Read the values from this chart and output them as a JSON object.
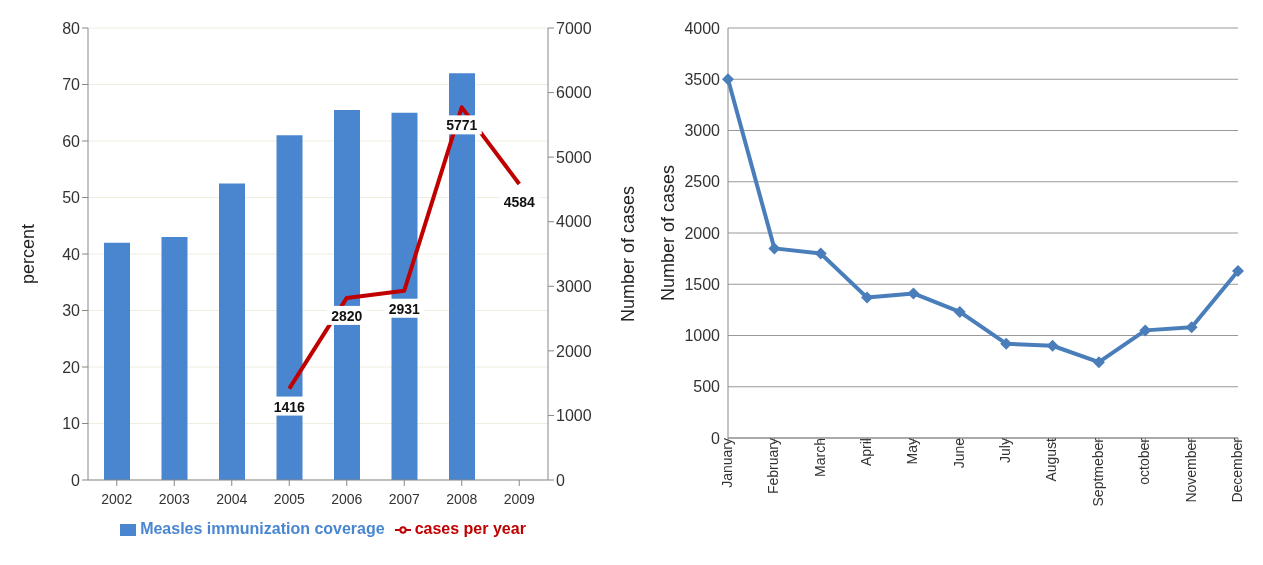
{
  "chart_data": [
    {
      "type": "bar",
      "categories": [
        "2002",
        "2003",
        "2004",
        "2005",
        "2006",
        "2007",
        "2008",
        "2009"
      ],
      "ylabel": "percent",
      "y2label": "Number of cases",
      "ylim": [
        0,
        80
      ],
      "yticks": [
        0,
        10,
        20,
        30,
        40,
        50,
        60,
        70,
        80
      ],
      "y2lim": [
        0,
        7000
      ],
      "y2ticks": [
        0,
        1000,
        2000,
        3000,
        4000,
        5000,
        6000,
        7000
      ],
      "grid": "y",
      "legend": "bottom",
      "marker": "none",
      "series": [
        {
          "name": "Measles immunization coverage",
          "type": "bar",
          "color": "#4a86d0",
          "values": [
            42,
            43,
            52.5,
            61,
            65.5,
            65,
            72,
            null
          ]
        },
        {
          "name": "cases per year",
          "type": "line",
          "axis": "y2",
          "color": "#c00000",
          "values": [
            null,
            null,
            null,
            1416,
            2820,
            2931,
            5771,
            4584
          ],
          "value_labels": [
            null,
            null,
            null,
            "1416",
            "2820",
            "2931",
            "5771",
            "4584"
          ]
        }
      ]
    },
    {
      "type": "line",
      "categories": [
        "January",
        "February",
        "March",
        "April",
        "May",
        "June",
        "July",
        "August",
        "Septmeber",
        "october",
        "November",
        "December"
      ],
      "ylabel": "Number of cases",
      "ylim": [
        0,
        4000
      ],
      "yticks": [
        0,
        500,
        1000,
        1500,
        2000,
        2500,
        3000,
        3500,
        4000
      ],
      "grid": "y",
      "marker": "diamond",
      "color": "#4a7ebb",
      "values": [
        3500,
        1850,
        1800,
        1370,
        1410,
        1230,
        920,
        900,
        740,
        1050,
        1080,
        1630
      ]
    }
  ]
}
